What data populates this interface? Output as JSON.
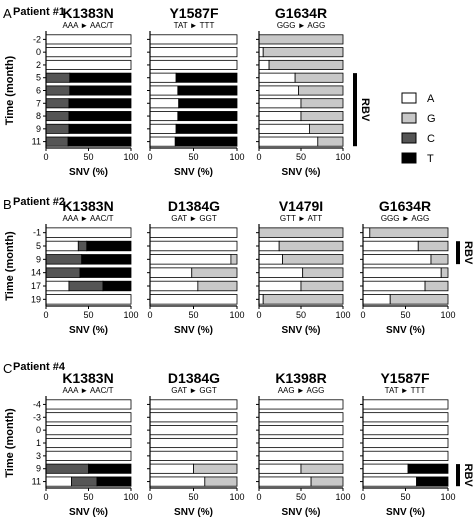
{
  "legend": {
    "items": [
      {
        "label": "A",
        "color": "#ffffff"
      },
      {
        "label": "G",
        "color": "#c8c8c8"
      },
      {
        "label": "C",
        "color": "#555555"
      },
      {
        "label": "T",
        "color": "#000000"
      }
    ]
  },
  "colors": {
    "A": "#ffffff",
    "G": "#c8c8c8",
    "C": "#555555",
    "T": "#000000",
    "stroke": "#000000"
  },
  "chart_data": [
    {
      "type": "bar",
      "stacked": true,
      "orientation": "horizontal",
      "panel_letter": "A",
      "title": "Patient #1",
      "ylabel": "Time (month)",
      "categories": [
        "-2",
        "0",
        "2",
        "5",
        "6",
        "7",
        "8",
        "9",
        "11"
      ],
      "rbv_label": "RBV",
      "rbv_from": "5",
      "rbv_to": "11",
      "subplots": [
        {
          "title": "K1383N",
          "mutation": "AAA ► AAC/T",
          "xlabel": "SNV (%)",
          "xticks": [
            "0",
            "50",
            "100"
          ],
          "xlim": [
            0,
            100
          ],
          "series": [
            {
              "name": "A",
              "values": [
                100,
                100,
                100,
                0,
                0,
                0,
                0,
                0,
                0
              ]
            },
            {
              "name": "G",
              "values": [
                0,
                0,
                0,
                0,
                0,
                0,
                0,
                0,
                0
              ]
            },
            {
              "name": "C",
              "values": [
                0,
                0,
                0,
                28,
                28,
                27,
                27,
                27,
                26
              ]
            },
            {
              "name": "T",
              "values": [
                0,
                0,
                0,
                72,
                72,
                73,
                73,
                73,
                74
              ]
            }
          ]
        },
        {
          "title": "Y1587F",
          "mutation": "TAT ► TTT",
          "xlabel": "SNV (%)",
          "xticks": [
            "0",
            "50",
            "100"
          ],
          "xlim": [
            0,
            100
          ],
          "series": [
            {
              "name": "A",
              "values": [
                100,
                100,
                100,
                30,
                32,
                33,
                32,
                30,
                29
              ]
            },
            {
              "name": "G",
              "values": [
                0,
                0,
                0,
                0,
                0,
                0,
                0,
                0,
                0
              ]
            },
            {
              "name": "C",
              "values": [
                0,
                0,
                0,
                0,
                0,
                0,
                0,
                0,
                0
              ]
            },
            {
              "name": "T",
              "values": [
                0,
                0,
                0,
                70,
                68,
                67,
                68,
                70,
                71
              ]
            }
          ]
        },
        {
          "title": "G1634R",
          "mutation": "GGG ► AGG",
          "xlabel": "SNV (%)",
          "xticks": [
            "0",
            "50",
            "100"
          ],
          "xlim": [
            0,
            100
          ],
          "series": [
            {
              "name": "A",
              "values": [
                0,
                5,
                12,
                43,
                47,
                50,
                50,
                60,
                70
              ]
            },
            {
              "name": "G",
              "values": [
                100,
                95,
                88,
                57,
                53,
                50,
                50,
                40,
                30
              ]
            },
            {
              "name": "C",
              "values": [
                0,
                0,
                0,
                0,
                0,
                0,
                0,
                0,
                0
              ]
            },
            {
              "name": "T",
              "values": [
                0,
                0,
                0,
                0,
                0,
                0,
                0,
                0,
                0
              ]
            }
          ]
        }
      ]
    },
    {
      "type": "bar",
      "stacked": true,
      "orientation": "horizontal",
      "panel_letter": "B",
      "title": "Patient #2",
      "ylabel": "Time (month)",
      "categories": [
        "-1",
        "5",
        "9",
        "14",
        "17",
        "19"
      ],
      "rbv_label": "RBV",
      "rbv_from": "5",
      "rbv_to": "9",
      "subplots": [
        {
          "title": "K1383N",
          "mutation": "AAA ► AAC/T",
          "xlabel": "SNV (%)",
          "xticks": [
            "0",
            "50",
            "100"
          ],
          "xlim": [
            0,
            100
          ],
          "series": [
            {
              "name": "A",
              "values": [
                100,
                38,
                0,
                0,
                27,
                100
              ]
            },
            {
              "name": "G",
              "values": [
                0,
                0,
                0,
                0,
                0,
                0
              ]
            },
            {
              "name": "C",
              "values": [
                0,
                10,
                42,
                40,
                40,
                0
              ]
            },
            {
              "name": "T",
              "values": [
                0,
                52,
                58,
                60,
                33,
                0
              ]
            }
          ]
        },
        {
          "title": "D1384G",
          "mutation": "GAT ► GGT",
          "xlabel": "SNV (%)",
          "xticks": [
            "0",
            "50",
            "100"
          ],
          "xlim": [
            0,
            100
          ],
          "series": [
            {
              "name": "A",
              "values": [
                100,
                100,
                93,
                48,
                55,
                100
              ]
            },
            {
              "name": "G",
              "values": [
                0,
                0,
                7,
                52,
                45,
                0
              ]
            },
            {
              "name": "C",
              "values": [
                0,
                0,
                0,
                0,
                0,
                0
              ]
            },
            {
              "name": "T",
              "values": [
                0,
                0,
                0,
                0,
                0,
                0
              ]
            }
          ]
        },
        {
          "title": "V1479I",
          "mutation": "GTT ► ATT",
          "xlabel": "SNV (%)",
          "xticks": [
            "0",
            "50",
            "100"
          ],
          "xlim": [
            0,
            100
          ],
          "series": [
            {
              "name": "A",
              "values": [
                0,
                24,
                28,
                52,
                50,
                5
              ]
            },
            {
              "name": "G",
              "values": [
                100,
                76,
                72,
                48,
                50,
                95
              ]
            },
            {
              "name": "C",
              "values": [
                0,
                0,
                0,
                0,
                0,
                0
              ]
            },
            {
              "name": "T",
              "values": [
                0,
                0,
                0,
                0,
                0,
                0
              ]
            }
          ]
        },
        {
          "title": "G1634R",
          "mutation": "GGG ► AGG",
          "xlabel": "SNV (%)",
          "xticks": [
            "0",
            "50",
            "100"
          ],
          "xlim": [
            0,
            100
          ],
          "series": [
            {
              "name": "A",
              "values": [
                8,
                65,
                80,
                92,
                73,
                32
              ]
            },
            {
              "name": "G",
              "values": [
                92,
                35,
                20,
                8,
                27,
                68
              ]
            },
            {
              "name": "C",
              "values": [
                0,
                0,
                0,
                0,
                0,
                0
              ]
            },
            {
              "name": "T",
              "values": [
                0,
                0,
                0,
                0,
                0,
                0
              ]
            }
          ]
        }
      ]
    },
    {
      "type": "bar",
      "stacked": true,
      "orientation": "horizontal",
      "panel_letter": "C",
      "title": "Patient #4",
      "ylabel": "Time (month)",
      "categories": [
        "-4",
        "-3",
        "0",
        "1",
        "3",
        "9",
        "11"
      ],
      "rbv_label": "RBV",
      "rbv_from": "9",
      "rbv_to": "11",
      "subplots": [
        {
          "title": "K1383N",
          "mutation": "AAA ► AAC/T",
          "xlabel": "SNV (%)",
          "xticks": [
            "0",
            "50",
            "100"
          ],
          "xlim": [
            0,
            100
          ],
          "series": [
            {
              "name": "A",
              "values": [
                100,
                100,
                100,
                100,
                100,
                0,
                30
              ]
            },
            {
              "name": "G",
              "values": [
                0,
                0,
                0,
                0,
                0,
                0,
                0
              ]
            },
            {
              "name": "C",
              "values": [
                0,
                0,
                0,
                0,
                0,
                50,
                30
              ]
            },
            {
              "name": "T",
              "values": [
                0,
                0,
                0,
                0,
                0,
                50,
                40
              ]
            }
          ]
        },
        {
          "title": "D1384G",
          "mutation": "GAT ► GGT",
          "xlabel": "SNV (%)",
          "xticks": [
            "0",
            "50",
            "100"
          ],
          "xlim": [
            0,
            100
          ],
          "series": [
            {
              "name": "A",
              "values": [
                100,
                100,
                100,
                100,
                100,
                50,
                63
              ]
            },
            {
              "name": "G",
              "values": [
                0,
                0,
                0,
                0,
                0,
                50,
                37
              ]
            },
            {
              "name": "C",
              "values": [
                0,
                0,
                0,
                0,
                0,
                0,
                0
              ]
            },
            {
              "name": "T",
              "values": [
                0,
                0,
                0,
                0,
                0,
                0,
                0
              ]
            }
          ]
        },
        {
          "title": "K1398R",
          "mutation": "AAG ► AGG",
          "xlabel": "SNV (%)",
          "xticks": [
            "0",
            "50",
            "100"
          ],
          "xlim": [
            0,
            100
          ],
          "series": [
            {
              "name": "A",
              "values": [
                100,
                100,
                100,
                100,
                100,
                50,
                62
              ]
            },
            {
              "name": "G",
              "values": [
                0,
                0,
                0,
                0,
                0,
                50,
                38
              ]
            },
            {
              "name": "C",
              "values": [
                0,
                0,
                0,
                0,
                0,
                0,
                0
              ]
            },
            {
              "name": "T",
              "values": [
                0,
                0,
                0,
                0,
                0,
                0,
                0
              ]
            }
          ]
        },
        {
          "title": "Y1587F",
          "mutation": "TAT ► TTT",
          "xlabel": "SNV (%)",
          "xticks": [
            "0",
            "50",
            "100"
          ],
          "xlim": [
            0,
            100
          ],
          "series": [
            {
              "name": "A",
              "values": [
                100,
                100,
                100,
                100,
                100,
                53,
                63
              ]
            },
            {
              "name": "G",
              "values": [
                0,
                0,
                0,
                0,
                0,
                0,
                0
              ]
            },
            {
              "name": "C",
              "values": [
                0,
                0,
                0,
                0,
                0,
                0,
                0
              ]
            },
            {
              "name": "T",
              "values": [
                0,
                0,
                0,
                0,
                0,
                47,
                37
              ]
            }
          ]
        }
      ]
    }
  ]
}
